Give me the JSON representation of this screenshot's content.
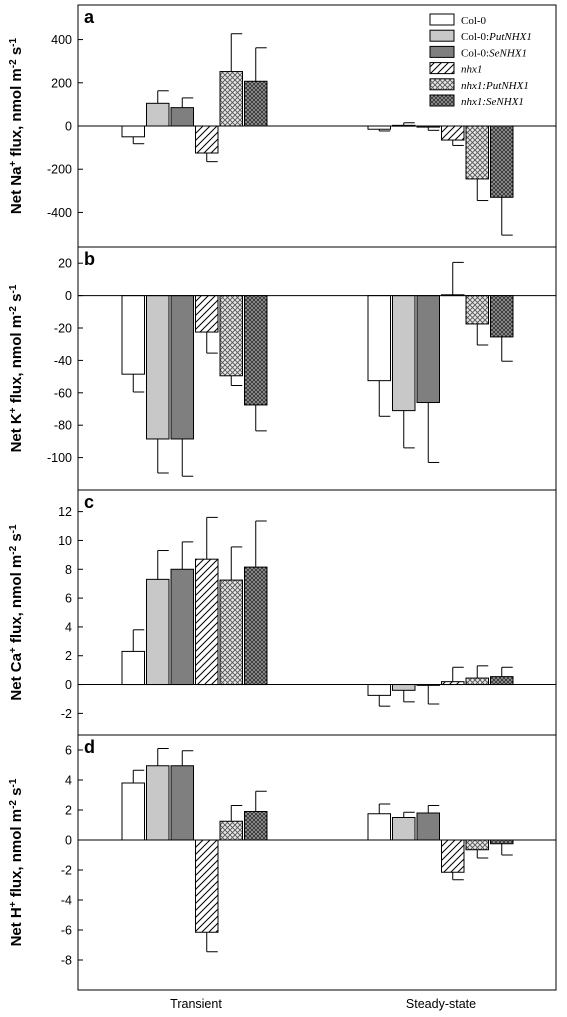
{
  "chart_data": [
    {
      "type": "bar",
      "panel_label": "a",
      "ylabel_parts": [
        "Net Na",
        "+",
        " flux, nmol m",
        "-2",
        " s",
        "-1"
      ],
      "ylim": [
        -560,
        560
      ],
      "yticks": [
        -400,
        -200,
        0,
        200,
        400
      ],
      "categories": [
        "Transient",
        "Steady-state"
      ],
      "series": [
        {
          "values": [
            -50,
            -15
          ],
          "errors": [
            32,
            8
          ]
        },
        {
          "values": [
            105,
            3
          ],
          "errors": [
            58,
            12
          ]
        },
        {
          "values": [
            85,
            -5
          ],
          "errors": [
            45,
            15
          ]
        },
        {
          "values": [
            -125,
            -65
          ],
          "errors": [
            40,
            25
          ]
        },
        {
          "values": [
            252,
            -245
          ],
          "errors": [
            175,
            100
          ]
        },
        {
          "values": [
            207,
            -330
          ],
          "errors": [
            155,
            175
          ]
        }
      ]
    },
    {
      "type": "bar",
      "panel_label": "b",
      "ylabel_parts": [
        "Net K",
        "+",
        " flux, nmol m",
        "-2",
        " s",
        "-1"
      ],
      "ylim": [
        -120,
        30
      ],
      "yticks": [
        -100,
        -80,
        -60,
        -40,
        -20,
        0,
        20
      ],
      "categories": [
        "Transient",
        "Steady-state"
      ],
      "series": [
        {
          "values": [
            -48.5,
            -52.5
          ],
          "errors": [
            11,
            22
          ]
        },
        {
          "values": [
            -88.5,
            -71
          ],
          "errors": [
            21,
            23
          ]
        },
        {
          "values": [
            -88.5,
            -66
          ],
          "errors": [
            23,
            37
          ]
        },
        {
          "values": [
            -22.5,
            0.5
          ],
          "errors": [
            13,
            20
          ]
        },
        {
          "values": [
            -49.5,
            -17.5
          ],
          "errors": [
            6,
            13
          ]
        },
        {
          "values": [
            -67.5,
            -25.5
          ],
          "errors": [
            16,
            15
          ]
        }
      ]
    },
    {
      "type": "bar",
      "panel_label": "c",
      "ylabel_parts": [
        "Net Ca",
        "+",
        " flux, nmol m",
        "-2",
        " s",
        "-1"
      ],
      "ylim": [
        -3.5,
        13.5
      ],
      "yticks": [
        -2,
        0,
        2,
        4,
        6,
        8,
        10,
        12
      ],
      "categories": [
        "Transient",
        "Steady-state"
      ],
      "series": [
        {
          "values": [
            2.3,
            -0.75
          ],
          "errors": [
            1.5,
            0.75
          ]
        },
        {
          "values": [
            7.3,
            -0.4
          ],
          "errors": [
            2.0,
            0.8
          ]
        },
        {
          "values": [
            8.0,
            -0.05
          ],
          "errors": [
            1.9,
            1.3
          ]
        },
        {
          "values": [
            8.7,
            0.2
          ],
          "errors": [
            2.9,
            1.0
          ]
        },
        {
          "values": [
            7.25,
            0.45
          ],
          "errors": [
            2.3,
            0.85
          ]
        },
        {
          "values": [
            8.15,
            0.55
          ],
          "errors": [
            3.2,
            0.65
          ]
        }
      ]
    },
    {
      "type": "bar",
      "panel_label": "d",
      "ylabel_parts": [
        "Net H",
        "+",
        " flux, nmol m",
        "-2",
        " s",
        "-1"
      ],
      "ylim": [
        -10,
        7
      ],
      "yticks": [
        -8,
        -6,
        -4,
        -2,
        0,
        2,
        4,
        6
      ],
      "categories": [
        "Transient",
        "Steady-state"
      ],
      "series": [
        {
          "values": [
            3.8,
            1.75
          ],
          "errors": [
            0.85,
            0.65
          ]
        },
        {
          "values": [
            4.95,
            1.5
          ],
          "errors": [
            1.15,
            0.35
          ]
        },
        {
          "values": [
            4.95,
            1.8
          ],
          "errors": [
            1.0,
            0.5
          ]
        },
        {
          "values": [
            -6.15,
            -2.15
          ],
          "errors": [
            1.3,
            0.5
          ]
        },
        {
          "values": [
            1.25,
            -0.65
          ],
          "errors": [
            1.05,
            0.55
          ]
        },
        {
          "values": [
            1.9,
            -0.25
          ],
          "errors": [
            1.35,
            0.75
          ]
        }
      ]
    }
  ],
  "legend": [
    {
      "prefix": "Col-0",
      "italic": ""
    },
    {
      "prefix": "Col-0:",
      "italic": "PutNHX1"
    },
    {
      "prefix": "Col-0:",
      "italic": "SeNHX1"
    },
    {
      "prefix": "",
      "italic": "nhx1"
    },
    {
      "prefix": "",
      "italic": "nhx1:PutNHX1"
    },
    {
      "prefix": "",
      "italic": "nhx1:SeNHX1"
    }
  ],
  "legend_placement": "top-right of panel a",
  "x_category_labels": [
    "Transient",
    "Steady-state"
  ],
  "series_styles": [
    "white",
    "light-gray",
    "dark-gray",
    "diagonal-hatch",
    "crosshatch-gray",
    "crosshatch-dark"
  ]
}
